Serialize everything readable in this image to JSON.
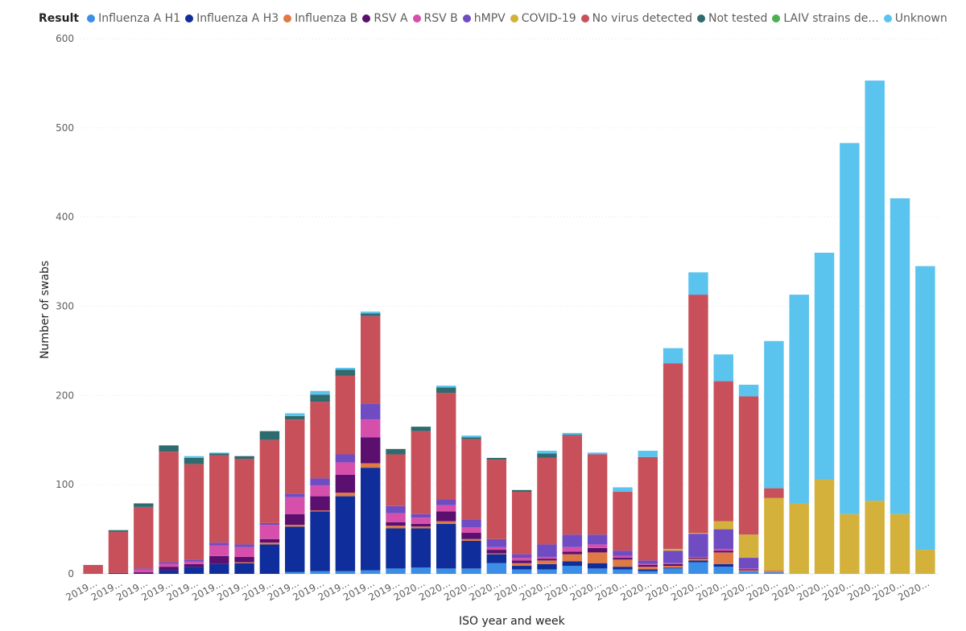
{
  "chart_data": {
    "type": "bar",
    "stacked": true,
    "legend_title": "Result",
    "legend_position": "top-left",
    "xlabel": "ISO year and week",
    "ylabel": "Number of swabs",
    "ylim": [
      0,
      600
    ],
    "yticks": [
      0,
      100,
      200,
      300,
      400,
      500,
      600
    ],
    "grid": true,
    "categories": [
      "2019...",
      "2019...",
      "2019...",
      "2019...",
      "2019...",
      "2019...",
      "2019...",
      "2019...",
      "2019...",
      "2019...",
      "2019...",
      "2019...",
      "2019...",
      "2020...",
      "2020...",
      "2020...",
      "2020...",
      "2020...",
      "2020...",
      "2020...",
      "2020...",
      "2020...",
      "2020...",
      "2020...",
      "2020...",
      "2020...",
      "2020...",
      "2020...",
      "2020...",
      "2020...",
      "2020...",
      "2020...",
      "2020...",
      "2020..."
    ],
    "series": [
      {
        "name": "Influenza A H1",
        "color": "#3a8ee6",
        "values": [
          0,
          0,
          0,
          0,
          0,
          0,
          0,
          0,
          2,
          3,
          3,
          4,
          6,
          7,
          6,
          6,
          12,
          5,
          5,
          9,
          6,
          5,
          3,
          6,
          13,
          8,
          3,
          2,
          0,
          0,
          0,
          0,
          0,
          0
        ]
      },
      {
        "name": "Influenza A H3",
        "color": "#0f2e9b",
        "values": [
          0,
          1,
          1,
          4,
          8,
          11,
          12,
          33,
          51,
          67,
          84,
          115,
          45,
          44,
          50,
          31,
          10,
          4,
          6,
          5,
          6,
          3,
          2,
          1,
          2,
          3,
          0,
          0,
          0,
          0,
          0,
          0,
          0,
          0
        ]
      },
      {
        "name": "Influenza B",
        "color": "#e07a45",
        "values": [
          0,
          0,
          0,
          0,
          0,
          0,
          1,
          2,
          2,
          1,
          4,
          5,
          3,
          2,
          3,
          2,
          1,
          3,
          4,
          8,
          12,
          8,
          3,
          2,
          2,
          13,
          1,
          2,
          0,
          0,
          0,
          0,
          0,
          0
        ]
      },
      {
        "name": "RSV A",
        "color": "#5b0f6e",
        "values": [
          0,
          0,
          1,
          4,
          3,
          9,
          6,
          4,
          12,
          16,
          20,
          29,
          4,
          3,
          11,
          7,
          4,
          3,
          2,
          3,
          5,
          2,
          2,
          2,
          1,
          2,
          1,
          0,
          0,
          0,
          0,
          0,
          0,
          0
        ]
      },
      {
        "name": "RSV B",
        "color": "#d64fab",
        "values": [
          0,
          0,
          3,
          3,
          3,
          12,
          11,
          16,
          19,
          12,
          14,
          20,
          10,
          7,
          7,
          6,
          3,
          3,
          2,
          5,
          4,
          2,
          1,
          1,
          1,
          2,
          1,
          0,
          0,
          0,
          0,
          0,
          0,
          0
        ]
      },
      {
        "name": "hMPV",
        "color": "#6f4cc2",
        "values": [
          0,
          0,
          1,
          2,
          2,
          3,
          3,
          2,
          4,
          8,
          9,
          18,
          8,
          4,
          6,
          9,
          9,
          4,
          14,
          14,
          11,
          6,
          4,
          14,
          26,
          22,
          12,
          0,
          0,
          0,
          0,
          0,
          0,
          0
        ]
      },
      {
        "name": "COVID-19",
        "color": "#d4b13a",
        "values": [
          0,
          0,
          0,
          0,
          0,
          0,
          0,
          0,
          0,
          0,
          0,
          0,
          0,
          0,
          0,
          0,
          0,
          0,
          0,
          0,
          0,
          0,
          0,
          2,
          1,
          9,
          26,
          81,
          79,
          106,
          67,
          82,
          67,
          27
        ]
      },
      {
        "name": "No virus detected",
        "color": "#c8505b",
        "values": [
          10,
          46,
          69,
          124,
          107,
          98,
          96,
          93,
          83,
          86,
          88,
          98,
          58,
          93,
          120,
          90,
          89,
          70,
          97,
          111,
          90,
          66,
          116,
          208,
          267,
          157,
          155,
          11,
          0,
          0,
          0,
          0,
          0,
          0
        ]
      },
      {
        "name": "Not tested",
        "color": "#2f6b6e",
        "values": [
          0,
          2,
          4,
          7,
          7,
          2,
          3,
          10,
          4,
          8,
          7,
          3,
          6,
          5,
          6,
          2,
          2,
          2,
          5,
          1,
          0,
          0,
          0,
          0,
          0,
          0,
          0,
          0,
          0,
          0,
          0,
          0,
          0,
          0
        ]
      },
      {
        "name": "LAIV strains de...",
        "color": "#4caf50",
        "values": [
          0,
          0,
          0,
          0,
          0,
          0,
          0,
          0,
          0,
          0,
          0,
          0,
          0,
          0,
          0,
          0,
          0,
          0,
          0,
          0,
          0,
          0,
          0,
          0,
          0,
          0,
          0,
          0,
          0,
          0,
          0,
          0,
          0,
          0
        ]
      },
      {
        "name": "Unknown",
        "color": "#5ac3ee",
        "values": [
          0,
          0,
          0,
          0,
          2,
          1,
          0,
          0,
          3,
          4,
          2,
          2,
          0,
          0,
          2,
          2,
          0,
          0,
          3,
          2,
          2,
          5,
          7,
          17,
          25,
          30,
          13,
          165,
          234,
          254,
          416,
          471,
          354,
          318
        ]
      }
    ]
  }
}
